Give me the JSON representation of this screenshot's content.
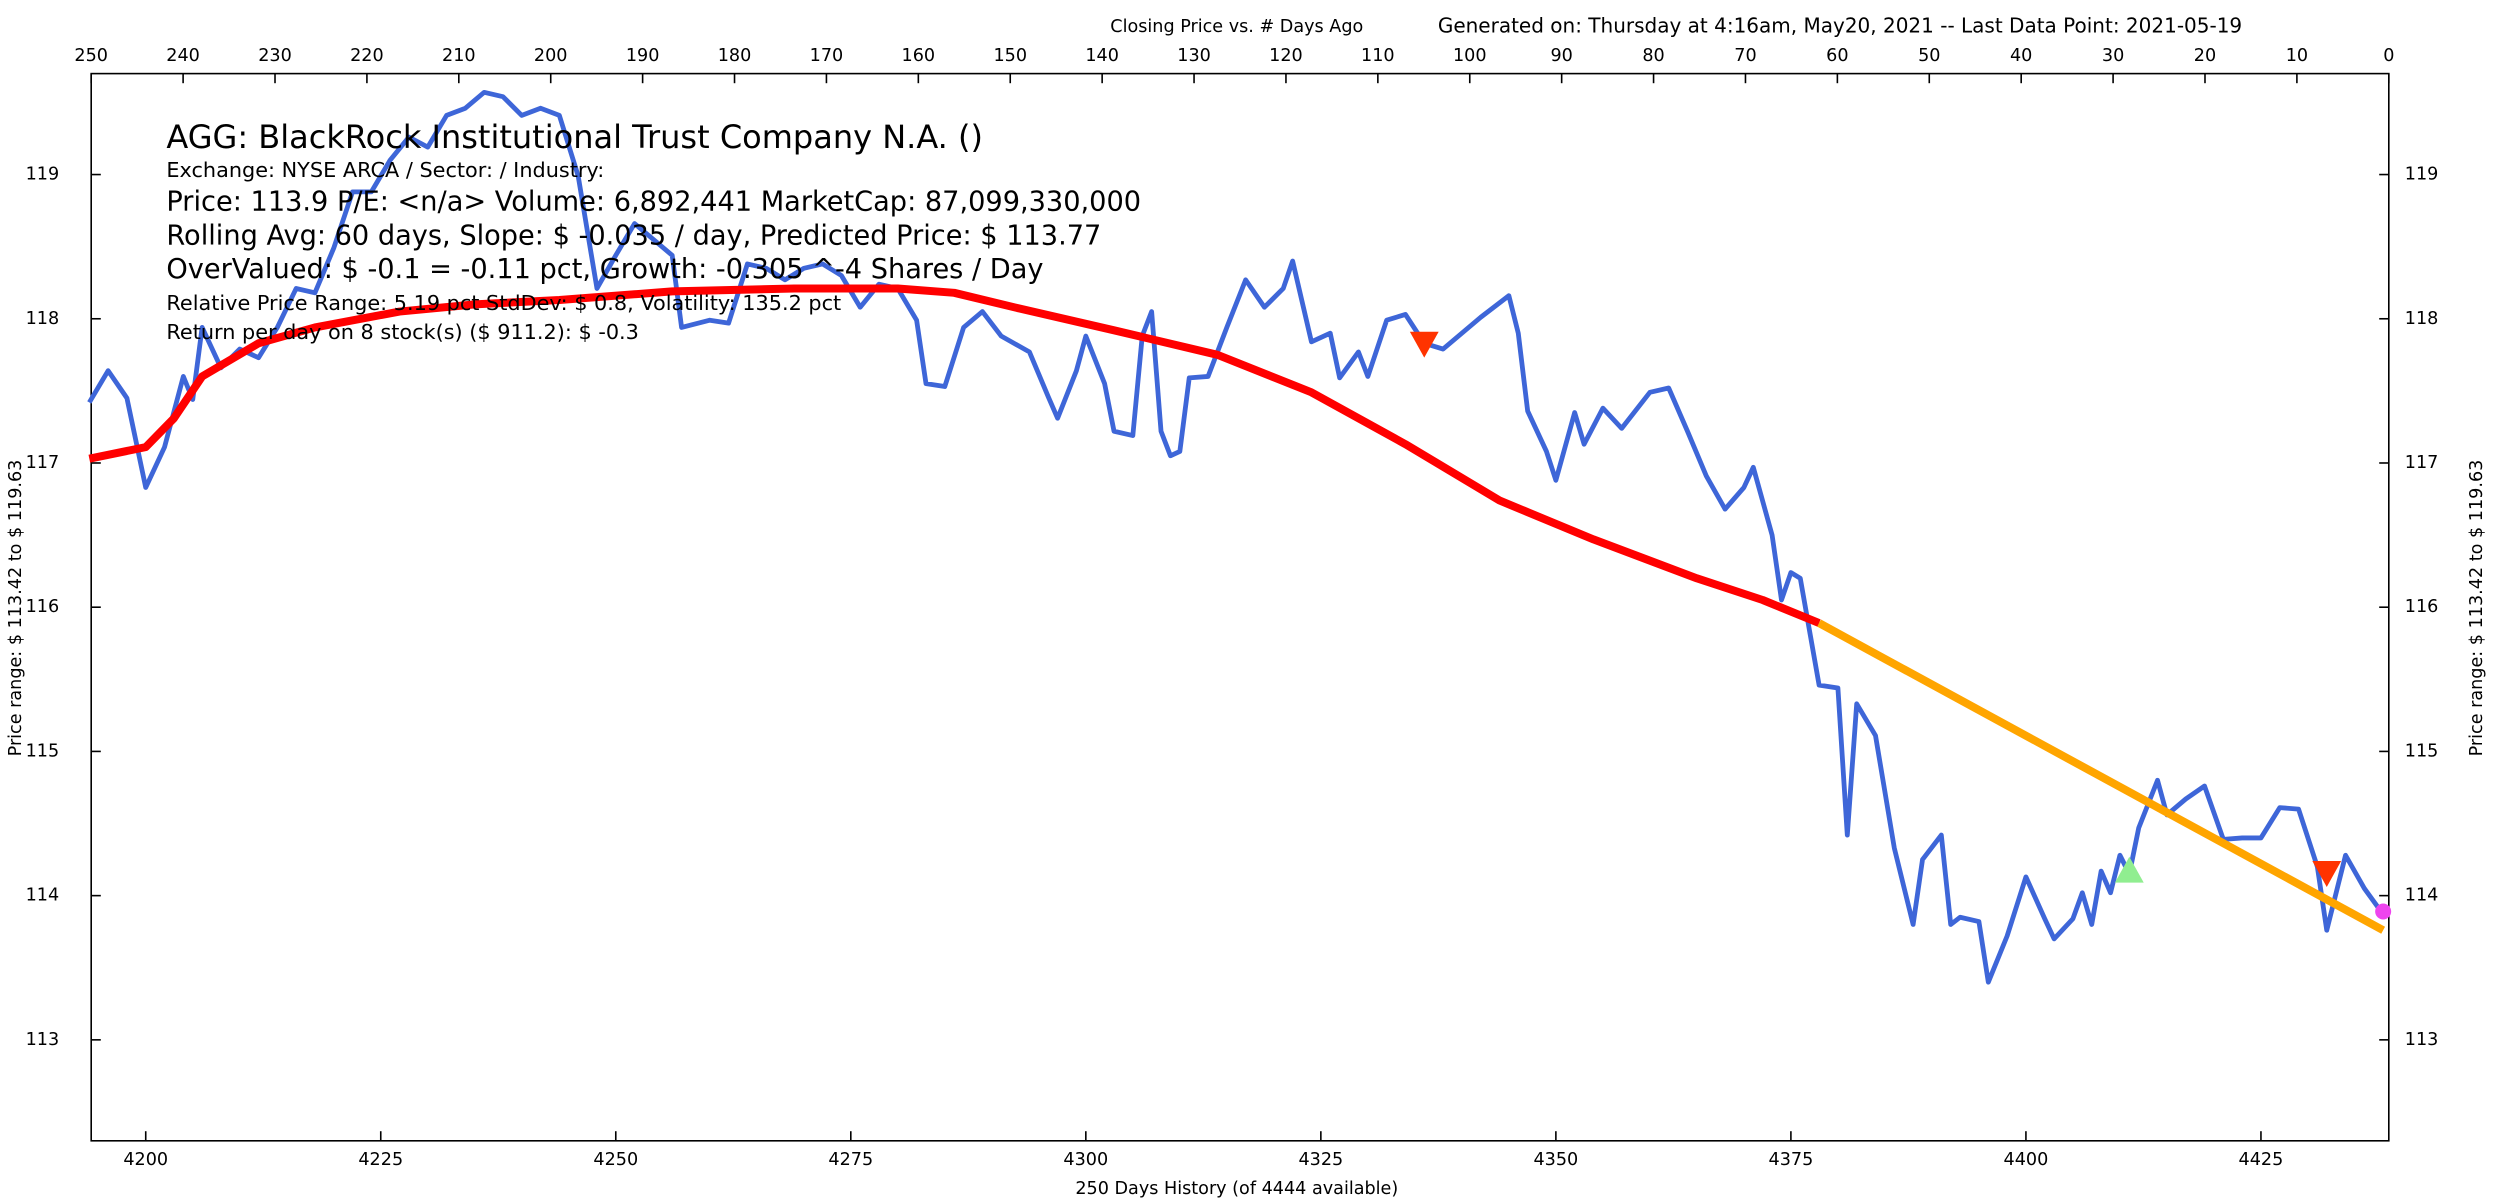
{
  "chart_data": {
    "type": "line",
    "title": "Closing Price vs. # Days Ago",
    "subtitle": "Generated on:  Thursday at  4:16am, May20, 2021  --  Last Data Point:  2021-05-19",
    "info": [
      "AGG:  BlackRock Institutional Trust Company N.A.  ()",
      "Exchange: NYSE ARCA  /  Sector:   /  Industry:",
      "Price: 113.9  P/E: <n/a> Volume: 6,892,441  MarketCap: 87,099,330,000",
      "Rolling Avg: 60 days, Slope: $ -0.035 / day, Predicted Price: $ 113.77",
      "OverValued: $ -0.1 = -0.11 pct,  Growth: -0.305 ^-4 Shares / Day",
      "Relative Price Range: 5.19 pct  StdDev: $ 0.8, Volatility: 135.2 pct",
      "Return per day on 8 stock(s) ($ 911.2): $ -0.3"
    ],
    "x_label": "250 Days History (of 4444 available)",
    "y_label": "Price range:  $ 113.42  to  $ 119.63",
    "y2_label": "Price range: $ 113.42  to  $ 119.63",
    "xlim": [
      4194.2,
      4438.6
    ],
    "xticks": [
      4200,
      4225,
      4250,
      4275,
      4300,
      4325,
      4350,
      4375,
      4400,
      4425
    ],
    "x2lim": [
      250,
      0
    ],
    "x2ticks": [
      250,
      240,
      230,
      220,
      210,
      200,
      190,
      180,
      170,
      160,
      150,
      140,
      130,
      120,
      110,
      100,
      90,
      80,
      70,
      60,
      50,
      40,
      30,
      20,
      10,
      0
    ],
    "ylim": [
      112.3,
      119.7
    ],
    "yticks": [
      113,
      114,
      115,
      116,
      117,
      118,
      119
    ],
    "series": [
      {
        "color": "#3e66d8",
        "x": [
          4194,
          4196,
          4198,
          4200,
          4202,
          4204,
          4205,
          4206,
          4208,
          4210,
          4212,
          4214,
          4216,
          4218,
          4220,
          4222,
          4224,
          4226,
          4228,
          4230,
          4232,
          4234,
          4236,
          4238,
          4240,
          4242,
          4244,
          4246,
          4248,
          4250,
          4252,
          4254,
          4256,
          4257,
          4260,
          4262,
          4264,
          4266,
          4268,
          4270,
          4272,
          4274,
          4276,
          4278,
          4280,
          4282,
          4283,
          4285,
          4287,
          4289,
          4291,
          4294,
          4296,
          4297,
          4299,
          4300,
          4302,
          4303,
          4305,
          4306,
          4307,
          4308,
          4309,
          4310,
          4311,
          4313,
          4315,
          4317,
          4319,
          4321,
          4322,
          4324,
          4326,
          4327,
          4329,
          4330,
          4332,
          4334,
          4336,
          4338,
          4340,
          4342,
          4345,
          4346,
          4347,
          4349,
          4350,
          4352,
          4353,
          4355,
          4357,
          4360,
          4362,
          4364,
          4366,
          4368,
          4370,
          4371,
          4373,
          4374,
          4375,
          4376,
          4378,
          4380,
          4381,
          4382,
          4384,
          4386,
          4388,
          4389,
          4391,
          4392,
          4393,
          4395,
          4396,
          4398,
          4400,
          4402,
          4403,
          4405,
          4406,
          4407,
          4408,
          4409,
          4410,
          4411,
          4412,
          4414,
          4415,
          4417,
          4419,
          4421,
          4423,
          4425,
          4427,
          4429,
          4431,
          4432,
          4434,
          4436,
          4438
        ],
        "values": [
          117.42,
          117.64,
          117.45,
          116.83,
          117.11,
          117.6,
          117.44,
          117.94,
          117.66,
          117.79,
          117.73,
          117.94,
          118.21,
          118.18,
          118.49,
          118.88,
          118.88,
          119.1,
          119.26,
          119.19,
          119.41,
          119.46,
          119.57,
          119.54,
          119.41,
          119.46,
          119.41,
          118.99,
          118.21,
          118.44,
          118.66,
          118.55,
          118.44,
          117.94,
          117.99,
          117.97,
          118.38,
          118.35,
          118.27,
          118.35,
          118.38,
          118.3,
          118.08,
          118.24,
          118.21,
          117.99,
          117.55,
          117.53,
          117.94,
          118.05,
          117.88,
          117.77,
          117.46,
          117.31,
          117.64,
          117.88,
          117.55,
          117.22,
          117.19,
          117.88,
          118.05,
          117.22,
          117.05,
          117.08,
          117.59,
          117.6,
          117.94,
          118.27,
          118.08,
          118.21,
          118.4,
          117.84,
          117.9,
          117.59,
          117.77,
          117.6,
          117.99,
          118.03,
          117.83,
          117.79,
          117.9,
          118.01,
          118.16,
          117.9,
          117.36,
          117.08,
          116.88,
          117.35,
          117.13,
          117.38,
          117.24,
          117.49,
          117.52,
          117.22,
          116.91,
          116.68,
          116.83,
          116.97,
          116.5,
          116.05,
          116.24,
          116.2,
          115.46,
          115.44,
          114.42,
          115.33,
          115.11,
          114.33,
          113.8,
          114.25,
          114.42,
          113.8,
          113.85,
          113.82,
          113.4,
          113.72,
          114.13,
          113.84,
          113.7,
          113.84,
          114.02,
          113.8,
          114.17,
          114.02,
          114.28,
          114.15,
          114.47,
          114.8,
          114.56,
          114.67,
          114.76,
          114.39,
          114.4,
          114.4,
          114.61,
          114.6,
          114.2,
          113.76,
          114.28,
          114.05,
          113.87
        ]
      },
      {
        "color": "#ff0000",
        "x": [
          4194,
          4200,
          4203,
          4206,
          4212,
          4218,
          4227,
          4235,
          4244,
          4256,
          4269,
          4280,
          4286,
          4293,
          4303,
          4314,
          4324,
          4334,
          4344,
          4354,
          4365,
          4372,
          4378
        ],
        "values": [
          117.03,
          117.11,
          117.31,
          117.6,
          117.83,
          117.94,
          118.05,
          118.1,
          118.13,
          118.19,
          118.21,
          118.21,
          118.18,
          118.07,
          117.92,
          117.75,
          117.49,
          117.13,
          116.74,
          116.47,
          116.2,
          116.05,
          115.89
        ]
      },
      {
        "color": "#ffa500",
        "x": [
          4378,
          4438
        ],
        "values": [
          115.89,
          113.76
        ]
      }
    ],
    "markers": [
      {
        "shape": "triangle-down",
        "color": "#ff3300",
        "x": 4336,
        "value": 117.83
      },
      {
        "shape": "triangle-down",
        "color": "#ff3300",
        "x": 4432,
        "value": 114.16
      },
      {
        "shape": "triangle-up",
        "color": "#90ee90",
        "x": 4411,
        "value": 114.17
      },
      {
        "shape": "circle",
        "color": "#ee44ee",
        "x": 4438,
        "value": 113.89
      }
    ]
  }
}
